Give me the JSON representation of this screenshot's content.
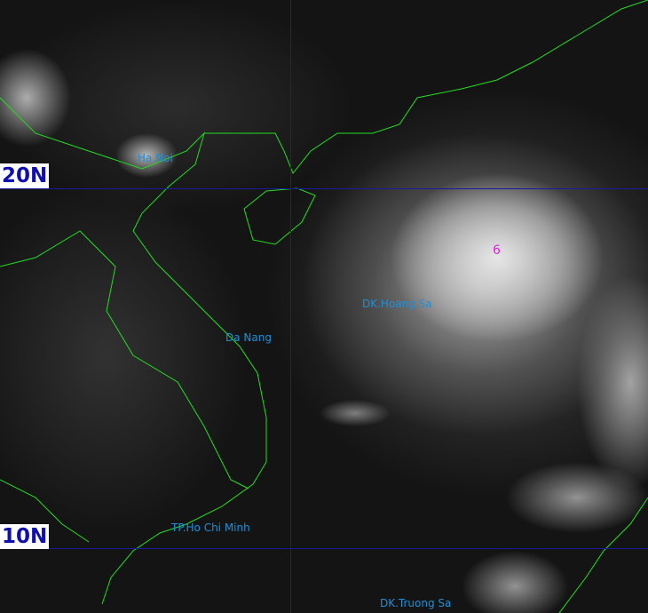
{
  "latitude_labels": {
    "north_20": "20N",
    "north_10": "10N"
  },
  "places": {
    "ha_noi": "Ha Noi",
    "da_nang": "Da Nang",
    "hoang_sa": "DK.Hoang Sa",
    "ho_chi_minh": "TP.Ho Chi Minh",
    "truong_sa": "DK.Truong Sa"
  },
  "storm_marker": "6",
  "colors": {
    "coastline": "#22dd22",
    "grid": "#1a1a9a",
    "place_label": "#1e8fd8",
    "storm_marker": "#e020e0",
    "lat_label": "#1010b0"
  }
}
